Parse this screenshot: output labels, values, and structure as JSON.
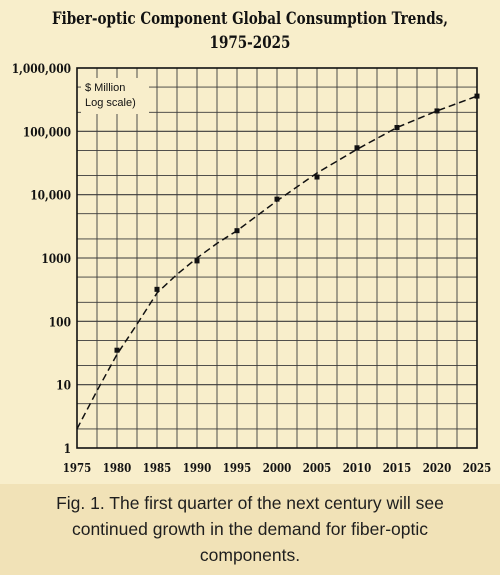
{
  "chart_data": {
    "type": "line",
    "title": "Fiber-optic Component Global Consumption Trends,",
    "subtitle": "1975-2025",
    "ylabel_lines": [
      "$ Million",
      "Log scale)"
    ],
    "xlabel": "",
    "x_ticks": [
      1975,
      1980,
      1985,
      1990,
      1995,
      2000,
      2005,
      2010,
      2015,
      2020,
      2025
    ],
    "y_ticks": [
      {
        "value": 1,
        "label": "1"
      },
      {
        "value": 10,
        "label": "10"
      },
      {
        "value": 100,
        "label": "100"
      },
      {
        "value": 1000,
        "label": "1000"
      },
      {
        "value": 10000,
        "label": "10,000"
      },
      {
        "value": 100000,
        "label": "100,000"
      },
      {
        "value": 1000000,
        "label": "1,000,000"
      }
    ],
    "xlim": [
      1975,
      2025
    ],
    "ylim": [
      1,
      1000000
    ],
    "y_scale": "log",
    "grid": true,
    "series": [
      {
        "style": "scatter",
        "x": [
          1980,
          1985,
          1990,
          1995,
          2000,
          2005,
          2010,
          2015,
          2020,
          2025
        ],
        "y": [
          35,
          320,
          900,
          2700,
          8500,
          19000,
          55000,
          115000,
          210000,
          360000
        ]
      },
      {
        "style": "dashed-trend",
        "x": [
          1975,
          1977.5,
          1980,
          1982.5,
          1985,
          1987.5,
          1990,
          1992.5,
          1995,
          2000,
          2005,
          2010,
          2015,
          2020,
          2025
        ],
        "y": [
          2,
          8,
          30,
          90,
          280,
          550,
          1000,
          1700,
          2700,
          8000,
          22000,
          52000,
          115000,
          210000,
          360000
        ]
      }
    ]
  },
  "caption": "Fig. 1. The first quarter of the next century will see continued growth in the demand for fiber-optic components.",
  "colors": {
    "background": "#f8eecb",
    "caption_background": "#f1e2b7",
    "grid": "#3a3a3a",
    "ink": "#111111"
  }
}
